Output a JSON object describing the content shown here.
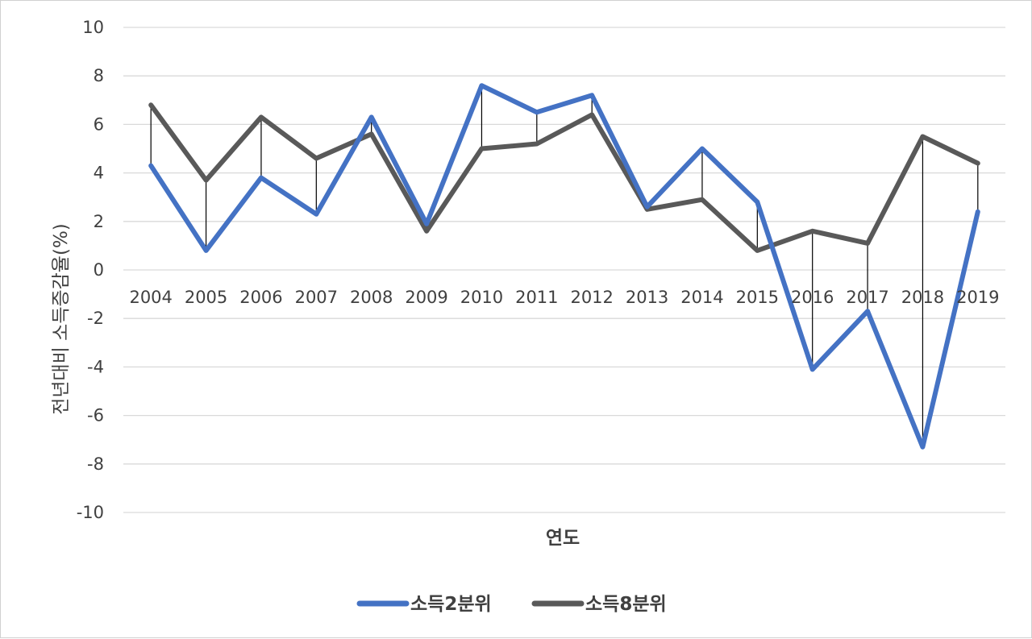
{
  "chart_data": {
    "type": "line",
    "title": "",
    "xlabel": "연도",
    "ylabel": "전년대비 소득증감율(%)",
    "x": [
      "2004",
      "2005",
      "2006",
      "2007",
      "2008",
      "2009",
      "2010",
      "2011",
      "2012",
      "2013",
      "2014",
      "2015",
      "2016",
      "2017",
      "2018",
      "2019"
    ],
    "ylim": [
      -10,
      10
    ],
    "yticks": [
      10,
      8,
      6,
      4,
      2,
      0,
      -2,
      -4,
      -6,
      -8,
      -10
    ],
    "ytick_labels": [
      "10",
      "8",
      "6",
      "4",
      "2",
      "0",
      "-2",
      "-4",
      "-6",
      "-8",
      "-10"
    ],
    "grid": true,
    "legend_position": "bottom",
    "high_low_lines": true,
    "series": [
      {
        "name": "소득2분위",
        "color": "#4472C4",
        "values": [
          4.3,
          0.8,
          3.8,
          2.3,
          6.3,
          1.9,
          7.6,
          6.5,
          7.2,
          2.6,
          5.0,
          2.8,
          -4.1,
          -1.7,
          -7.3,
          2.4
        ]
      },
      {
        "name": "소득8분위",
        "color": "#595959",
        "values": [
          6.8,
          3.7,
          6.3,
          4.6,
          5.6,
          1.6,
          5.0,
          5.2,
          6.4,
          2.5,
          2.9,
          0.8,
          1.6,
          1.1,
          5.5,
          4.4
        ]
      }
    ]
  }
}
